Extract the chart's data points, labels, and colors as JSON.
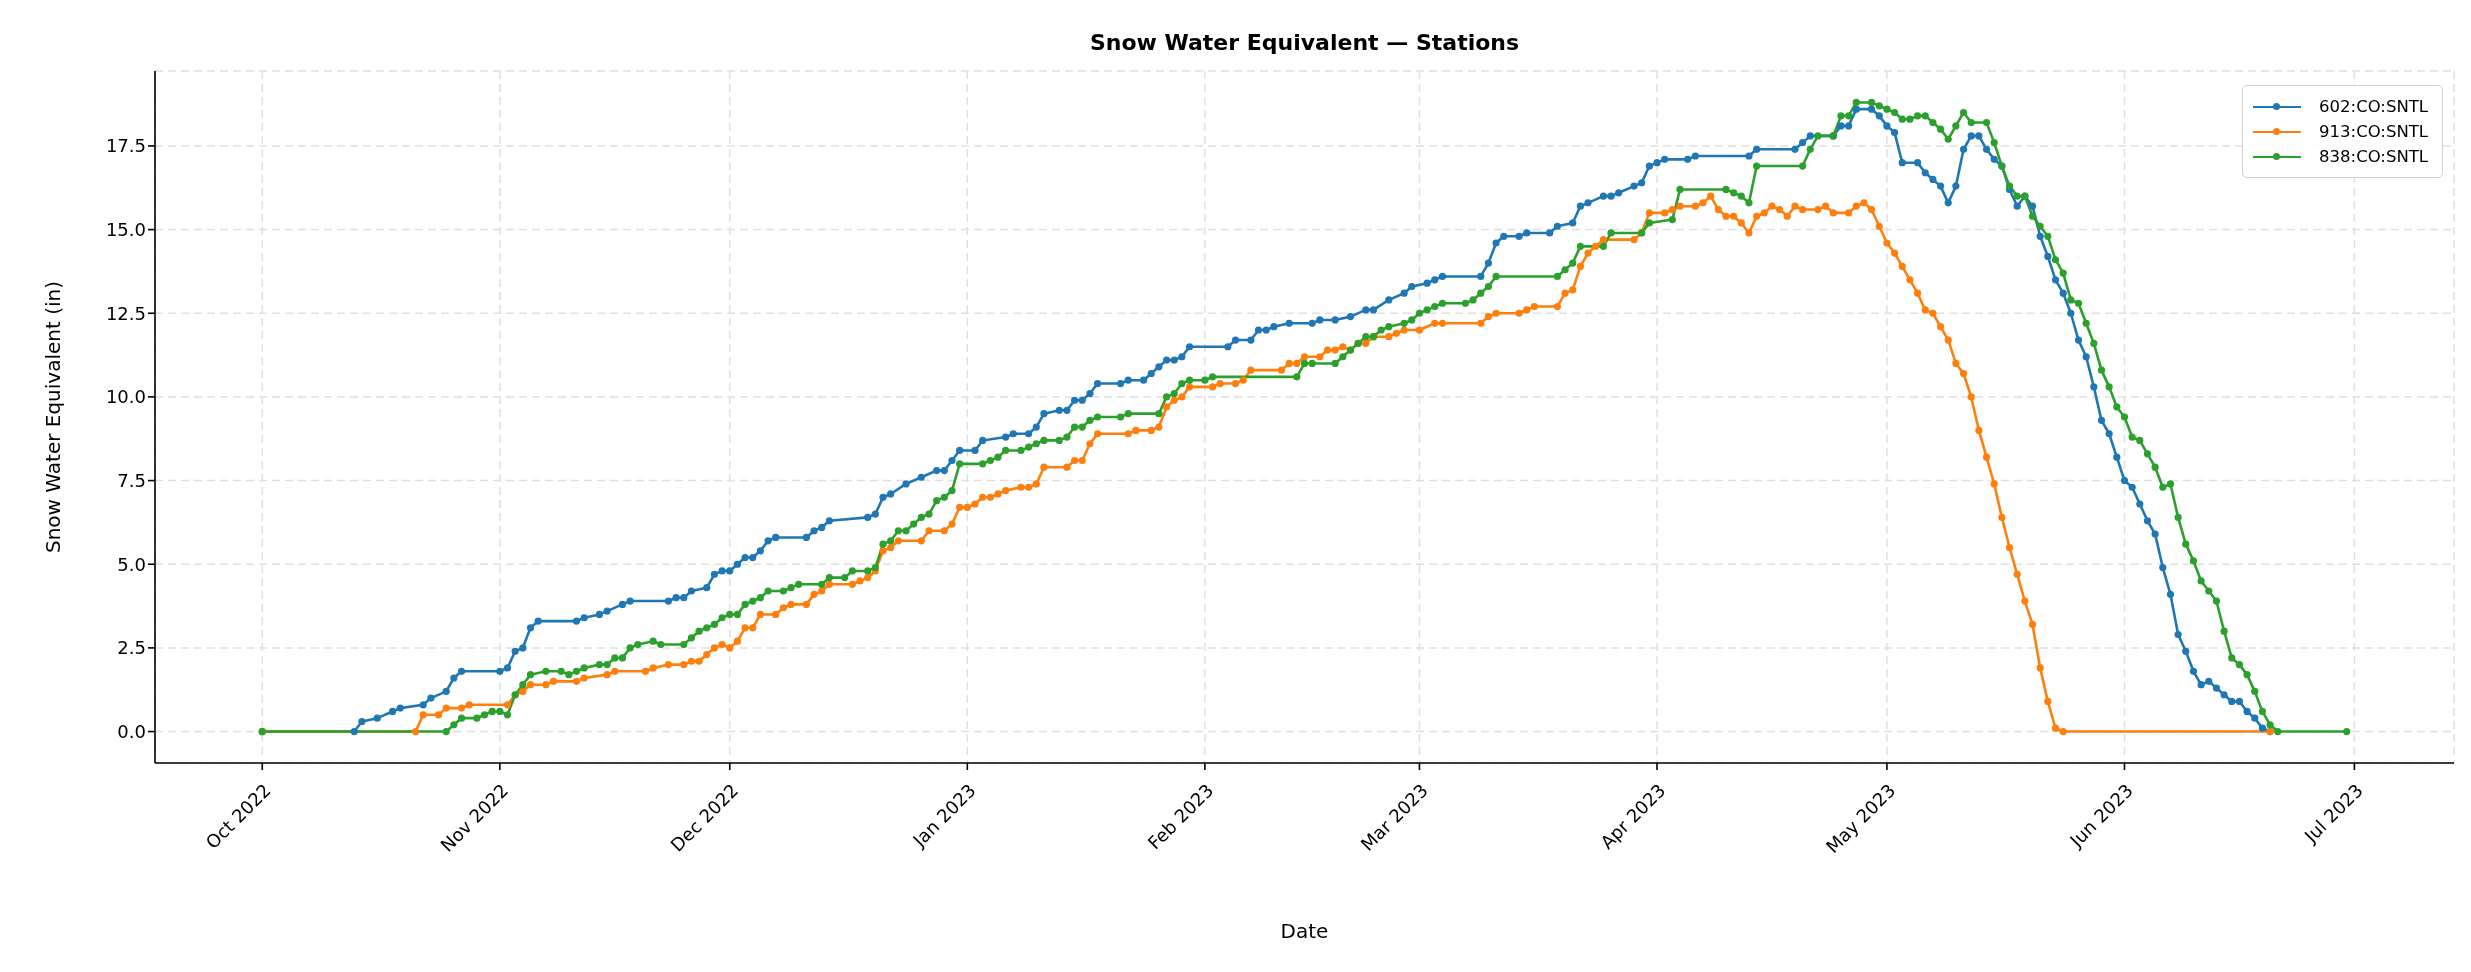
{
  "chart_data": {
    "type": "line",
    "title": "Snow Water Equivalent — Stations",
    "xlabel": "Date",
    "ylabel": "Snow Water Equivalent (in)",
    "xlim": [
      "2022-09-17",
      "2023-07-14"
    ],
    "xticks": [
      {
        "value": "2022-10-01",
        "label": "Oct 2022"
      },
      {
        "value": "2022-11-01",
        "label": "Nov 2022"
      },
      {
        "value": "2022-12-01",
        "label": "Dec 2022"
      },
      {
        "value": "2023-01-01",
        "label": "Jan 2023"
      },
      {
        "value": "2023-02-01",
        "label": "Feb 2023"
      },
      {
        "value": "2023-03-01",
        "label": "Mar 2023"
      },
      {
        "value": "2023-04-01",
        "label": "Apr 2023"
      },
      {
        "value": "2023-05-01",
        "label": "May 2023"
      },
      {
        "value": "2023-06-01",
        "label": "Jun 2023"
      },
      {
        "value": "2023-07-01",
        "label": "Jul 2023"
      }
    ],
    "ylim": [
      -0.94,
      19.74
    ],
    "yticks": [
      {
        "value": 0,
        "label": "0.0"
      },
      {
        "value": 2.5,
        "label": "2.5"
      },
      {
        "value": 5,
        "label": "5.0"
      },
      {
        "value": 7.5,
        "label": "7.5"
      },
      {
        "value": 10,
        "label": "10.0"
      },
      {
        "value": 12.5,
        "label": "12.5"
      },
      {
        "value": 15,
        "label": "15.0"
      },
      {
        "value": 17.5,
        "label": "17.5"
      }
    ],
    "grid": true,
    "legend": "top right",
    "marker": "circle",
    "line_style": "solid",
    "series": [
      {
        "name": "602:CO:SNTL",
        "color": "#1f77b4",
        "x": [
          "2022-10-01",
          "2022-10-13",
          "2022-10-14",
          "2022-10-16",
          "2022-10-18",
          "2022-10-19",
          "2022-10-22",
          "2022-10-23",
          "2022-10-25",
          "2022-10-26",
          "2022-10-27",
          "2022-11-01",
          "2022-11-02",
          "2022-11-03",
          "2022-11-04",
          "2022-11-05",
          "2022-11-06",
          "2022-11-11",
          "2022-11-12",
          "2022-11-14",
          "2022-11-15",
          "2022-11-17",
          "2022-11-18",
          "2022-11-23",
          "2022-11-24",
          "2022-11-25",
          "2022-11-26",
          "2022-11-28",
          "2022-11-29",
          "2022-11-30",
          "2022-12-01",
          "2022-12-02",
          "2022-12-03",
          "2022-12-04",
          "2022-12-05",
          "2022-12-06",
          "2022-12-07",
          "2022-12-11",
          "2022-12-12",
          "2022-12-13",
          "2022-12-14",
          "2022-12-19",
          "2022-12-20",
          "2022-12-21",
          "2022-12-22",
          "2022-12-24",
          "2022-12-26",
          "2022-12-28",
          "2022-12-29",
          "2022-12-30",
          "2022-12-31",
          "2023-01-02",
          "2023-01-03",
          "2023-01-06",
          "2023-01-07",
          "2023-01-09",
          "2023-01-10",
          "2023-01-11",
          "2023-01-13",
          "2023-01-14",
          "2023-01-15",
          "2023-01-16",
          "2023-01-17",
          "2023-01-18",
          "2023-01-21",
          "2023-01-22",
          "2023-01-24",
          "2023-01-25",
          "2023-01-26",
          "2023-01-27",
          "2023-01-28",
          "2023-01-29",
          "2023-01-30",
          "2023-02-04",
          "2023-02-05",
          "2023-02-07",
          "2023-02-08",
          "2023-02-09",
          "2023-02-10",
          "2023-02-12",
          "2023-02-15",
          "2023-02-16",
          "2023-02-18",
          "2023-02-20",
          "2023-02-22",
          "2023-02-23",
          "2023-02-25",
          "2023-02-27",
          "2023-02-28",
          "2023-03-02",
          "2023-03-03",
          "2023-03-04",
          "2023-03-09",
          "2023-03-10",
          "2023-03-11",
          "2023-03-12",
          "2023-03-14",
          "2023-03-15",
          "2023-03-18",
          "2023-03-19",
          "2023-03-21",
          "2023-03-22",
          "2023-03-23",
          "2023-03-25",
          "2023-03-26",
          "2023-03-27",
          "2023-03-29",
          "2023-03-30",
          "2023-03-31",
          "2023-04-01",
          "2023-04-02",
          "2023-04-05",
          "2023-04-06",
          "2023-04-13",
          "2023-04-14",
          "2023-04-19",
          "2023-04-20",
          "2023-04-21",
          "2023-04-24",
          "2023-04-25",
          "2023-04-26",
          "2023-04-27",
          "2023-04-29",
          "2023-04-30",
          "2023-05-01",
          "2023-05-02",
          "2023-05-03",
          "2023-05-05",
          "2023-05-06",
          "2023-05-07",
          "2023-05-08",
          "2023-05-09",
          "2023-05-10",
          "2023-05-11",
          "2023-05-12",
          "2023-05-13",
          "2023-05-14",
          "2023-05-15",
          "2023-05-16",
          "2023-05-17",
          "2023-05-18",
          "2023-05-19",
          "2023-05-20",
          "2023-05-21",
          "2023-05-22",
          "2023-05-23",
          "2023-05-24",
          "2023-05-25",
          "2023-05-26",
          "2023-05-27",
          "2023-05-28",
          "2023-05-29",
          "2023-05-30",
          "2023-05-31",
          "2023-06-01",
          "2023-06-02",
          "2023-06-03",
          "2023-06-04",
          "2023-06-05",
          "2023-06-06",
          "2023-06-07",
          "2023-06-08",
          "2023-06-09",
          "2023-06-10",
          "2023-06-11",
          "2023-06-12",
          "2023-06-13",
          "2023-06-14",
          "2023-06-15",
          "2023-06-16",
          "2023-06-17",
          "2023-06-18",
          "2023-06-19",
          "2023-06-20"
        ],
        "values": [
          0,
          0,
          0.3,
          0.4,
          0.6,
          0.7,
          0.8,
          1.0,
          1.2,
          1.6,
          1.8,
          1.8,
          1.9,
          2.4,
          2.5,
          3.1,
          3.3,
          3.3,
          3.4,
          3.5,
          3.6,
          3.8,
          3.9,
          3.9,
          4.0,
          4.0,
          4.2,
          4.3,
          4.7,
          4.8,
          4.8,
          5.0,
          5.2,
          5.2,
          5.4,
          5.7,
          5.8,
          5.8,
          6.0,
          6.1,
          6.3,
          6.4,
          6.5,
          7.0,
          7.1,
          7.4,
          7.6,
          7.8,
          7.8,
          8.1,
          8.4,
          8.4,
          8.7,
          8.8,
          8.9,
          8.9,
          9.1,
          9.5,
          9.6,
          9.6,
          9.9,
          9.9,
          10.1,
          10.4,
          10.4,
          10.5,
          10.5,
          10.7,
          10.9,
          11.1,
          11.1,
          11.2,
          11.5,
          11.5,
          11.7,
          11.7,
          12.0,
          12.0,
          12.1,
          12.2,
          12.2,
          12.3,
          12.3,
          12.4,
          12.6,
          12.6,
          12.9,
          13.1,
          13.3,
          13.4,
          13.5,
          13.6,
          13.6,
          14.0,
          14.6,
          14.8,
          14.8,
          14.9,
          14.9,
          15.1,
          15.2,
          15.7,
          15.8,
          16.0,
          16.0,
          16.1,
          16.3,
          16.4,
          16.9,
          17.0,
          17.1,
          17.1,
          17.2,
          17.2,
          17.4,
          17.4,
          17.6,
          17.8,
          17.8,
          18.1,
          18.1,
          18.6,
          18.6,
          18.4,
          18.1,
          17.9,
          17.0,
          17.0,
          16.7,
          16.5,
          16.3,
          15.8,
          16.3,
          17.4,
          17.8,
          17.8,
          17.4,
          17.1,
          16.9,
          16.2,
          15.7,
          16.0,
          15.7,
          14.8,
          14.2,
          13.5,
          13.1,
          12.5,
          11.7,
          11.2,
          10.3,
          9.3,
          8.9,
          8.2,
          7.5,
          7.3,
          6.8,
          6.3,
          5.9,
          4.9,
          4.1,
          2.9,
          2.4,
          1.8,
          1.4,
          1.5,
          1.3,
          1.1,
          0.9,
          0.9,
          0.6,
          0.4,
          0.1,
          0
        ]
      },
      {
        "name": "913:CO:SNTL",
        "color": "#ff7f0e",
        "x": [
          "2022-10-01",
          "2022-10-21",
          "2022-10-22",
          "2022-10-24",
          "2022-10-25",
          "2022-10-27",
          "2022-10-28",
          "2022-11-02",
          "2022-11-03",
          "2022-11-04",
          "2022-11-05",
          "2022-11-07",
          "2022-11-08",
          "2022-11-11",
          "2022-11-12",
          "2022-11-15",
          "2022-11-16",
          "2022-11-20",
          "2022-11-21",
          "2022-11-23",
          "2022-11-25",
          "2022-11-26",
          "2022-11-27",
          "2022-11-28",
          "2022-11-29",
          "2022-11-30",
          "2022-12-01",
          "2022-12-02",
          "2022-12-03",
          "2022-12-04",
          "2022-12-05",
          "2022-12-07",
          "2022-12-08",
          "2022-12-09",
          "2022-12-11",
          "2022-12-12",
          "2022-12-13",
          "2022-12-14",
          "2022-12-17",
          "2022-12-18",
          "2022-12-19",
          "2022-12-20",
          "2022-12-21",
          "2022-12-22",
          "2022-12-23",
          "2022-12-26",
          "2022-12-27",
          "2022-12-29",
          "2022-12-30",
          "2022-12-31",
          "2023-01-01",
          "2023-01-02",
          "2023-01-03",
          "2023-01-04",
          "2023-01-05",
          "2023-01-06",
          "2023-01-08",
          "2023-01-09",
          "2023-01-10",
          "2023-01-11",
          "2023-01-14",
          "2023-01-15",
          "2023-01-16",
          "2023-01-17",
          "2023-01-18",
          "2023-01-22",
          "2023-01-23",
          "2023-01-25",
          "2023-01-26",
          "2023-01-27",
          "2023-01-28",
          "2023-01-29",
          "2023-01-30",
          "2023-02-02",
          "2023-02-03",
          "2023-02-05",
          "2023-02-06",
          "2023-02-07",
          "2023-02-11",
          "2023-02-12",
          "2023-02-13",
          "2023-02-14",
          "2023-02-16",
          "2023-02-17",
          "2023-02-18",
          "2023-02-19",
          "2023-02-20",
          "2023-02-21",
          "2023-02-22",
          "2023-02-23",
          "2023-02-25",
          "2023-02-26",
          "2023-02-27",
          "2023-03-01",
          "2023-03-03",
          "2023-03-04",
          "2023-03-09",
          "2023-03-10",
          "2023-03-11",
          "2023-03-14",
          "2023-03-15",
          "2023-03-16",
          "2023-03-19",
          "2023-03-20",
          "2023-03-21",
          "2023-03-22",
          "2023-03-23",
          "2023-03-24",
          "2023-03-25",
          "2023-03-29",
          "2023-03-30",
          "2023-03-31",
          "2023-04-02",
          "2023-04-03",
          "2023-04-04",
          "2023-04-06",
          "2023-04-07",
          "2023-04-08",
          "2023-04-09",
          "2023-04-10",
          "2023-04-11",
          "2023-04-12",
          "2023-04-13",
          "2023-04-14",
          "2023-04-15",
          "2023-04-16",
          "2023-04-17",
          "2023-04-18",
          "2023-04-19",
          "2023-04-20",
          "2023-04-22",
          "2023-04-23",
          "2023-04-24",
          "2023-04-26",
          "2023-04-27",
          "2023-04-28",
          "2023-04-29",
          "2023-04-30",
          "2023-05-01",
          "2023-05-02",
          "2023-05-03",
          "2023-05-04",
          "2023-05-05",
          "2023-05-06",
          "2023-05-07",
          "2023-05-08",
          "2023-05-09",
          "2023-05-10",
          "2023-05-11",
          "2023-05-12",
          "2023-05-13",
          "2023-05-14",
          "2023-05-15",
          "2023-05-16",
          "2023-05-17",
          "2023-05-18",
          "2023-05-19",
          "2023-05-20",
          "2023-05-21",
          "2023-05-22",
          "2023-05-23",
          "2023-05-24",
          "2023-06-20"
        ],
        "values": [
          0,
          0,
          0.5,
          0.5,
          0.7,
          0.7,
          0.8,
          0.8,
          1.1,
          1.2,
          1.4,
          1.4,
          1.5,
          1.5,
          1.6,
          1.7,
          1.8,
          1.8,
          1.9,
          2.0,
          2.0,
          2.1,
          2.1,
          2.3,
          2.5,
          2.6,
          2.5,
          2.7,
          3.1,
          3.1,
          3.5,
          3.5,
          3.7,
          3.8,
          3.8,
          4.1,
          4.2,
          4.4,
          4.4,
          4.5,
          4.6,
          4.8,
          5.4,
          5.5,
          5.7,
          5.7,
          6.0,
          6.0,
          6.2,
          6.7,
          6.7,
          6.8,
          7.0,
          7.0,
          7.1,
          7.2,
          7.3,
          7.3,
          7.4,
          7.9,
          7.9,
          8.1,
          8.1,
          8.6,
          8.9,
          8.9,
          9.0,
          9.0,
          9.1,
          9.7,
          9.9,
          10.0,
          10.3,
          10.3,
          10.4,
          10.4,
          10.5,
          10.8,
          10.8,
          11.0,
          11.0,
          11.2,
          11.2,
          11.4,
          11.4,
          11.5,
          11.4,
          11.6,
          11.6,
          11.8,
          11.8,
          11.9,
          12.0,
          12.0,
          12.2,
          12.2,
          12.2,
          12.4,
          12.5,
          12.5,
          12.6,
          12.7,
          12.7,
          13.1,
          13.2,
          13.9,
          14.3,
          14.5,
          14.7,
          14.7,
          14.9,
          15.5,
          15.5,
          15.6,
          15.7,
          15.7,
          15.8,
          16.0,
          15.6,
          15.4,
          15.4,
          15.2,
          14.9,
          15.4,
          15.5,
          15.7,
          15.6,
          15.4,
          15.7,
          15.6,
          15.6,
          15.7,
          15.5,
          15.5,
          15.7,
          15.8,
          15.6,
          15.1,
          14.6,
          14.3,
          13.9,
          13.5,
          13.1,
          12.6,
          12.5,
          12.1,
          11.7,
          11.0,
          10.7,
          10.0,
          9.0,
          8.2,
          7.4,
          6.4,
          5.5,
          4.7,
          3.9,
          3.2,
          1.9,
          0.9,
          0.1,
          0,
          0
        ]
      },
      {
        "name": "838:CO:SNTL",
        "color": "#2ca02c",
        "x": [
          "2022-10-01",
          "2022-10-25",
          "2022-10-26",
          "2022-10-27",
          "2022-10-29",
          "2022-10-30",
          "2022-10-31",
          "2022-11-01",
          "2022-11-02",
          "2022-11-03",
          "2022-11-04",
          "2022-11-05",
          "2022-11-07",
          "2022-11-09",
          "2022-11-10",
          "2022-11-11",
          "2022-11-12",
          "2022-11-14",
          "2022-11-15",
          "2022-11-16",
          "2022-11-17",
          "2022-11-18",
          "2022-11-19",
          "2022-11-21",
          "2022-11-22",
          "2022-11-25",
          "2022-11-26",
          "2022-11-27",
          "2022-11-28",
          "2022-11-29",
          "2022-11-30",
          "2022-12-01",
          "2022-12-02",
          "2022-12-03",
          "2022-12-04",
          "2022-12-05",
          "2022-12-06",
          "2022-12-08",
          "2022-12-09",
          "2022-12-10",
          "2022-12-13",
          "2022-12-14",
          "2022-12-16",
          "2022-12-17",
          "2022-12-19",
          "2022-12-20",
          "2022-12-21",
          "2022-12-22",
          "2022-12-23",
          "2022-12-24",
          "2022-12-25",
          "2022-12-26",
          "2022-12-27",
          "2022-12-28",
          "2022-12-29",
          "2022-12-30",
          "2022-12-31",
          "2023-01-03",
          "2023-01-04",
          "2023-01-05",
          "2023-01-06",
          "2023-01-08",
          "2023-01-09",
          "2023-01-10",
          "2023-01-11",
          "2023-01-13",
          "2023-01-14",
          "2023-01-15",
          "2023-01-16",
          "2023-01-17",
          "2023-01-18",
          "2023-01-21",
          "2023-01-22",
          "2023-01-26",
          "2023-01-27",
          "2023-01-28",
          "2023-01-29",
          "2023-01-30",
          "2023-02-01",
          "2023-02-02",
          "2023-02-13",
          "2023-02-14",
          "2023-02-15",
          "2023-02-18",
          "2023-02-19",
          "2023-02-20",
          "2023-02-21",
          "2023-02-22",
          "2023-02-23",
          "2023-02-24",
          "2023-02-25",
          "2023-02-27",
          "2023-02-28",
          "2023-03-01",
          "2023-03-02",
          "2023-03-03",
          "2023-03-04",
          "2023-03-07",
          "2023-03-08",
          "2023-03-09",
          "2023-03-10",
          "2023-03-11",
          "2023-03-19",
          "2023-03-20",
          "2023-03-21",
          "2023-03-22",
          "2023-03-25",
          "2023-03-26",
          "2023-03-30",
          "2023-03-31",
          "2023-04-03",
          "2023-04-04",
          "2023-04-10",
          "2023-04-11",
          "2023-04-12",
          "2023-04-13",
          "2023-04-14",
          "2023-04-20",
          "2023-04-21",
          "2023-04-22",
          "2023-04-24",
          "2023-04-25",
          "2023-04-26",
          "2023-04-27",
          "2023-04-29",
          "2023-04-30",
          "2023-05-01",
          "2023-05-02",
          "2023-05-03",
          "2023-05-04",
          "2023-05-05",
          "2023-05-06",
          "2023-05-07",
          "2023-05-08",
          "2023-05-09",
          "2023-05-10",
          "2023-05-11",
          "2023-05-12",
          "2023-05-14",
          "2023-05-15",
          "2023-05-16",
          "2023-05-17",
          "2023-05-18",
          "2023-05-19",
          "2023-05-20",
          "2023-05-21",
          "2023-05-22",
          "2023-05-23",
          "2023-05-24",
          "2023-05-25",
          "2023-05-26",
          "2023-05-27",
          "2023-05-28",
          "2023-05-29",
          "2023-05-30",
          "2023-05-31",
          "2023-06-01",
          "2023-06-02",
          "2023-06-03",
          "2023-06-04",
          "2023-06-05",
          "2023-06-06",
          "2023-06-07",
          "2023-06-08",
          "2023-06-09",
          "2023-06-10",
          "2023-06-11",
          "2023-06-12",
          "2023-06-13",
          "2023-06-14",
          "2023-06-15",
          "2023-06-16",
          "2023-06-17",
          "2023-06-18",
          "2023-06-19",
          "2023-06-20",
          "2023-06-21",
          "2023-06-30"
        ],
        "values": [
          0,
          0,
          0.2,
          0.4,
          0.4,
          0.5,
          0.6,
          0.6,
          0.5,
          1.1,
          1.4,
          1.7,
          1.8,
          1.8,
          1.7,
          1.8,
          1.9,
          2.0,
          2.0,
          2.2,
          2.2,
          2.5,
          2.6,
          2.7,
          2.6,
          2.6,
          2.8,
          3.0,
          3.1,
          3.2,
          3.4,
          3.5,
          3.5,
          3.8,
          3.9,
          4.0,
          4.2,
          4.2,
          4.3,
          4.4,
          4.4,
          4.6,
          4.6,
          4.8,
          4.8,
          4.9,
          5.6,
          5.7,
          6.0,
          6.0,
          6.2,
          6.4,
          6.5,
          6.9,
          7.0,
          7.2,
          8.0,
          8.0,
          8.1,
          8.2,
          8.4,
          8.4,
          8.5,
          8.6,
          8.7,
          8.7,
          8.8,
          9.1,
          9.1,
          9.3,
          9.4,
          9.4,
          9.5,
          9.5,
          10.0,
          10.1,
          10.4,
          10.5,
          10.5,
          10.6,
          10.6,
          11.0,
          11.0,
          11.0,
          11.2,
          11.4,
          11.6,
          11.8,
          11.8,
          12.0,
          12.1,
          12.2,
          12.3,
          12.5,
          12.6,
          12.7,
          12.8,
          12.8,
          12.9,
          13.1,
          13.3,
          13.6,
          13.6,
          13.8,
          14.0,
          14.5,
          14.5,
          14.9,
          14.9,
          15.2,
          15.3,
          16.2,
          16.2,
          16.1,
          16.0,
          15.8,
          16.9,
          16.9,
          17.4,
          17.8,
          17.8,
          18.4,
          18.4,
          18.8,
          18.8,
          18.7,
          18.6,
          18.5,
          18.3,
          18.3,
          18.4,
          18.4,
          18.2,
          18.0,
          17.7,
          18.1,
          18.5,
          18.2,
          18.2,
          17.6,
          16.9,
          16.3,
          16.0,
          16.0,
          15.4,
          15.1,
          14.8,
          14.1,
          13.7,
          12.9,
          12.8,
          12.2,
          11.6,
          10.8,
          10.3,
          9.7,
          9.4,
          8.8,
          8.7,
          8.3,
          7.9,
          7.3,
          7.4,
          6.4,
          5.6,
          5.1,
          4.5,
          4.2,
          3.9,
          3.0,
          2.2,
          2.0,
          1.7,
          1.2,
          0.6,
          0.2,
          0,
          0
        ]
      }
    ]
  }
}
